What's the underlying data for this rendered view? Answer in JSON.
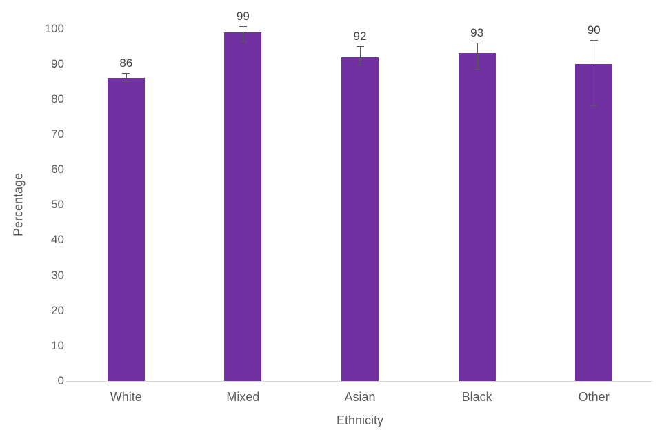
{
  "chart_data": {
    "type": "bar",
    "title": "",
    "xlabel": "Ethnicity",
    "ylabel": "Percentage",
    "categories": [
      "White",
      "Mixed",
      "Asian",
      "Black",
      "Other"
    ],
    "values": [
      86,
      99,
      92,
      93,
      90
    ],
    "data_labels": [
      "86",
      "99",
      "92",
      "93",
      "90"
    ],
    "error_bars": [
      {
        "upper": 87.5,
        "lower": 85.0
      },
      {
        "upper": 100.7,
        "lower": 96.4
      },
      {
        "upper": 95.1,
        "lower": 89.7
      },
      {
        "upper": 96.0,
        "lower": 88.6
      },
      {
        "upper": 96.8,
        "lower": 78.3
      }
    ],
    "ylim": [
      0,
      100
    ],
    "yticks": [
      0,
      10,
      20,
      30,
      40,
      50,
      60,
      70,
      80,
      90,
      100
    ],
    "grid": false,
    "legend": false,
    "colors": {
      "bar": "#7030a0",
      "error_bar": "#595959",
      "axis_line": "#d9d9d9",
      "tick_label": "#595959",
      "data_label": "#404040",
      "axis_title": "#595959",
      "background": "#ffffff"
    }
  }
}
